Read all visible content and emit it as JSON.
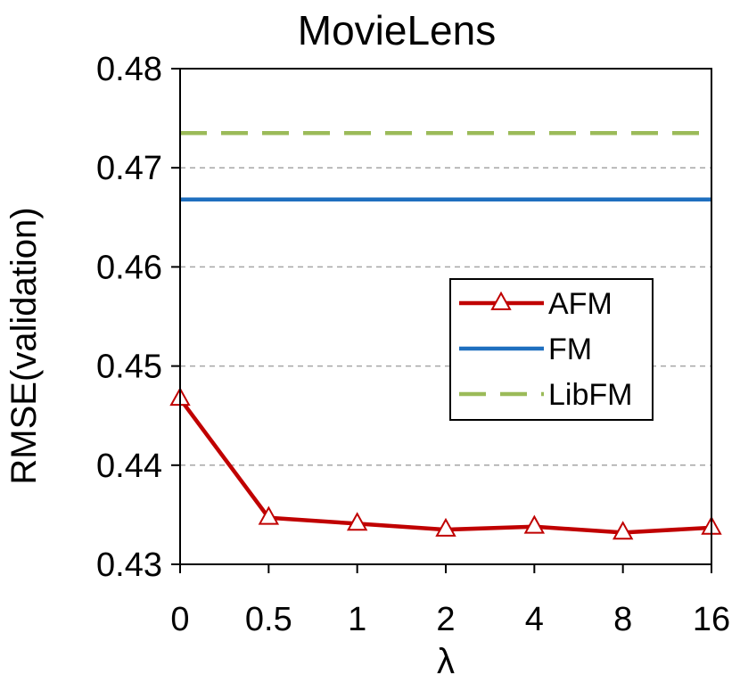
{
  "chart_data": {
    "type": "line",
    "title": "MovieLens",
    "xlabel": "λ",
    "ylabel": "RMSE(validation)",
    "categories": [
      "0",
      "0.5",
      "1",
      "2",
      "4",
      "8",
      "16"
    ],
    "ylim": [
      0.43,
      0.48
    ],
    "yticks": [
      "0.43",
      "0.44",
      "0.45",
      "0.46",
      "0.47",
      "0.48"
    ],
    "grid": true,
    "legend_position": "center-right",
    "series": [
      {
        "name": "AFM",
        "values": [
          0.4467,
          0.4347,
          0.4341,
          0.4335,
          0.4338,
          0.4332,
          0.4337
        ],
        "color": "#c00000",
        "style": "solid",
        "marker": "triangle-open"
      },
      {
        "name": "FM",
        "values": [
          0.4668,
          0.4668,
          0.4668,
          0.4668,
          0.4668,
          0.4668,
          0.4668
        ],
        "color": "#1f6fbf",
        "style": "solid",
        "marker": "none"
      },
      {
        "name": "LibFM",
        "values": [
          0.4735,
          0.4735,
          0.4735,
          0.4735,
          0.4735,
          0.4735,
          0.4735
        ],
        "color": "#9bbb59",
        "style": "dashed",
        "marker": "none"
      }
    ]
  }
}
